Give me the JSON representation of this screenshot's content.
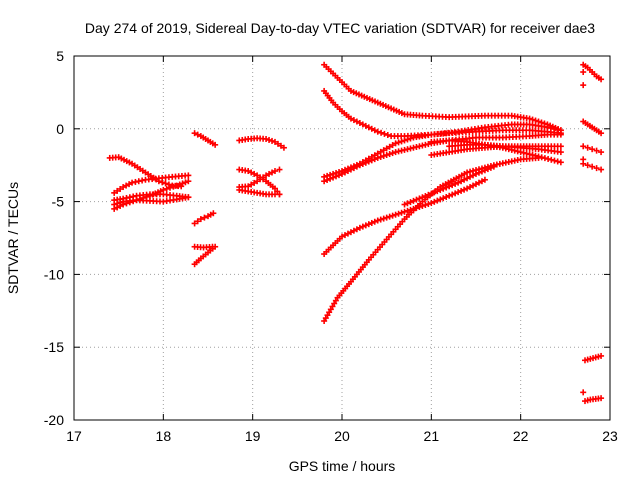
{
  "chart_data": {
    "type": "scatter",
    "title": "Day 274 of 2019, Sidereal Day-to-day VTEC variation (SDTVAR) for receiver dae3",
    "xlabel": "GPS time / hours",
    "ylabel": "SDTVAR / TECUs",
    "xlim": [
      17,
      23
    ],
    "ylim": [
      -20,
      5
    ],
    "xticks": [
      "17",
      "18",
      "19",
      "20",
      "21",
      "22",
      "23"
    ],
    "yticks": [
      "-20",
      "-15",
      "-10",
      "-5",
      "0",
      "5"
    ],
    "grid": true,
    "marker": "+",
    "color": "#ff0000",
    "series": [
      {
        "x": [
          17.45,
          17.55,
          17.7,
          17.85,
          18.0,
          18.15,
          18.28
        ],
        "y": [
          -5.5,
          -5.2,
          -4.9,
          -4.6,
          -4.2,
          -3.9,
          -3.6
        ]
      },
      {
        "x": [
          17.45,
          17.55,
          17.65,
          17.8,
          17.95,
          18.1,
          18.28
        ],
        "y": [
          -4.4,
          -4.0,
          -3.7,
          -3.5,
          -3.4,
          -3.3,
          -3.2
        ]
      },
      {
        "x": [
          17.45,
          17.55,
          17.7,
          17.85,
          18.0,
          18.15,
          18.28
        ],
        "y": [
          -4.9,
          -4.8,
          -4.6,
          -4.5,
          -4.5,
          -4.6,
          -4.7
        ]
      },
      {
        "x": [
          17.45,
          17.55,
          17.7,
          17.85,
          18.0,
          18.15,
          18.28
        ],
        "y": [
          -5.2,
          -5.0,
          -4.9,
          -4.95,
          -5.0,
          -4.85,
          -4.7
        ]
      },
      {
        "x": [
          17.4,
          17.5,
          17.65,
          17.8,
          17.95,
          18.1,
          18.2
        ],
        "y": [
          -2.0,
          -1.95,
          -2.4,
          -3.0,
          -3.6,
          -3.9,
          -3.95
        ]
      },
      {
        "x": [
          18.35,
          18.42,
          18.5,
          18.58
        ],
        "y": [
          -0.3,
          -0.5,
          -0.8,
          -1.1
        ]
      },
      {
        "x": [
          18.35,
          18.42,
          18.5,
          18.56
        ],
        "y": [
          -6.5,
          -6.2,
          -6.0,
          -5.8
        ]
      },
      {
        "x": [
          18.35,
          18.42,
          18.5,
          18.58
        ],
        "y": [
          -9.3,
          -8.9,
          -8.5,
          -8.1
        ]
      },
      {
        "x": [
          18.35,
          18.45,
          18.55
        ],
        "y": [
          -8.1,
          -8.15,
          -8.1
        ]
      },
      {
        "x": [
          18.85,
          18.95,
          19.05,
          19.15,
          19.25,
          19.35
        ],
        "y": [
          -0.8,
          -0.7,
          -0.65,
          -0.7,
          -0.9,
          -1.3
        ]
      },
      {
        "x": [
          18.85,
          18.95,
          19.05,
          19.15,
          19.25,
          19.3
        ],
        "y": [
          -2.8,
          -2.9,
          -3.2,
          -3.6,
          -4.1,
          -4.5
        ]
      },
      {
        "x": [
          18.85,
          18.95,
          19.05,
          19.15,
          19.25,
          19.3
        ],
        "y": [
          -4.0,
          -3.95,
          -3.6,
          -3.2,
          -2.9,
          -2.8
        ]
      },
      {
        "x": [
          18.85,
          18.95,
          19.05,
          19.15,
          19.25,
          19.3
        ],
        "y": [
          -4.2,
          -4.3,
          -4.4,
          -4.5,
          -4.5,
          -4.5
        ]
      },
      {
        "x": [
          19.8,
          19.9,
          20.0,
          20.1,
          20.25,
          20.4,
          20.55,
          20.7,
          20.9,
          21.2,
          21.6,
          21.9,
          22.1,
          22.3,
          22.45
        ],
        "y": [
          4.4,
          3.8,
          3.2,
          2.6,
          2.2,
          1.8,
          1.4,
          1.0,
          0.9,
          0.8,
          0.9,
          0.9,
          0.7,
          0.3,
          -0.1
        ]
      },
      {
        "x": [
          19.8,
          19.9,
          20.0,
          20.1,
          20.2,
          20.4,
          20.55,
          20.7,
          21.0,
          21.3,
          21.6,
          21.9,
          22.1,
          22.3,
          22.45
        ],
        "y": [
          2.6,
          1.8,
          1.2,
          0.7,
          0.4,
          -0.2,
          -0.5,
          -0.5,
          -0.4,
          -0.2,
          0.1,
          0.3,
          0.3,
          0.1,
          -0.1
        ]
      },
      {
        "x": [
          19.8,
          20.0,
          20.2,
          20.4,
          20.6,
          20.8,
          21.0,
          21.2,
          21.5,
          21.8,
          22.1,
          22.3,
          22.45
        ],
        "y": [
          -3.3,
          -2.9,
          -2.4,
          -1.7,
          -1.0,
          -0.6,
          -0.4,
          -0.3,
          -0.2,
          -0.1,
          -0.1,
          -0.2,
          -0.3
        ]
      },
      {
        "x": [
          19.8,
          20.0,
          20.2,
          20.4,
          20.6,
          20.8,
          21.0,
          21.2,
          21.5,
          21.8,
          22.1,
          22.3,
          22.45
        ],
        "y": [
          -3.6,
          -3.1,
          -2.5,
          -2.0,
          -1.6,
          -1.3,
          -1.0,
          -0.8,
          -0.6,
          -0.6,
          -0.5,
          -0.4,
          -0.4
        ]
      },
      {
        "x": [
          19.8,
          20.0,
          20.2,
          20.4,
          20.6,
          20.8,
          21.0,
          21.2,
          21.4,
          21.6
        ],
        "y": [
          -8.6,
          -7.4,
          -6.8,
          -6.3,
          -5.9,
          -5.5,
          -5.1,
          -4.6,
          -4.1,
          -3.5
        ]
      },
      {
        "x": [
          19.8,
          19.95,
          20.1,
          20.3,
          20.5,
          20.7,
          20.9,
          21.1,
          21.4,
          21.7,
          22.0,
          22.2
        ],
        "y": [
          -13.2,
          -11.6,
          -10.5,
          -9.0,
          -7.6,
          -6.2,
          -5.0,
          -4.0,
          -3.0,
          -2.5,
          -2.1,
          -2.0
        ]
      },
      {
        "x": [
          21.0,
          21.2,
          21.4,
          21.6,
          21.8,
          22.0,
          22.2,
          22.45
        ],
        "y": [
          -1.8,
          -1.6,
          -1.4,
          -1.3,
          -1.2,
          -1.3,
          -1.4,
          -1.6
        ]
      },
      {
        "x": [
          21.0,
          21.2,
          21.4,
          21.6,
          21.8,
          22.0,
          22.2,
          22.45
        ],
        "y": [
          -0.9,
          -0.8,
          -0.9,
          -1.1,
          -1.3,
          -1.6,
          -1.9,
          -2.3
        ]
      },
      {
        "x": [
          21.2,
          21.4,
          21.6,
          21.8,
          22.0,
          22.2,
          22.45
        ],
        "y": [
          -1.2,
          -1.1,
          -1.1,
          -1.2,
          -1.2,
          -1.2,
          -1.2
        ]
      },
      {
        "x": [
          20.7,
          20.9,
          21.1,
          21.3,
          21.5,
          21.7
        ],
        "y": [
          -5.2,
          -4.7,
          -4.2,
          -3.7,
          -3.1,
          -2.6
        ]
      },
      {
        "x": [
          22.7,
          22.75,
          22.8,
          22.85,
          22.9
        ],
        "y": [
          4.4,
          4.2,
          3.9,
          3.6,
          3.4
        ]
      },
      {
        "x": [
          22.7
        ],
        "y": [
          3.9
        ]
      },
      {
        "x": [
          22.7
        ],
        "y": [
          3.0
        ]
      },
      {
        "x": [
          22.7,
          22.75,
          22.8,
          22.85,
          22.9
        ],
        "y": [
          0.5,
          0.3,
          0.1,
          -0.1,
          -0.3
        ]
      },
      {
        "x": [
          22.7,
          22.75,
          22.8,
          22.85,
          22.9
        ],
        "y": [
          -1.2,
          -1.3,
          -1.4,
          -1.5,
          -1.6
        ]
      },
      {
        "x": [
          22.7,
          22.75,
          22.8,
          22.85,
          22.9
        ],
        "y": [
          -2.4,
          -2.5,
          -2.6,
          -2.7,
          -2.8
        ]
      },
      {
        "x": [
          22.7
        ],
        "y": [
          -2.1
        ]
      },
      {
        "x": [
          22.72,
          22.78,
          22.84,
          22.9
        ],
        "y": [
          -15.9,
          -15.8,
          -15.7,
          -15.6
        ]
      },
      {
        "x": [
          22.7
        ],
        "y": [
          -18.1
        ]
      },
      {
        "x": [
          22.72,
          22.78,
          22.84,
          22.9
        ],
        "y": [
          -18.7,
          -18.6,
          -18.55,
          -18.5
        ]
      }
    ]
  }
}
